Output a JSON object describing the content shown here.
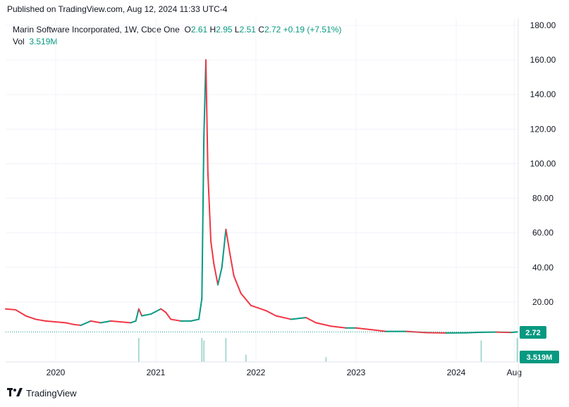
{
  "header": {
    "published": "Published on TradingView.com, Aug 12, 2024 11:33 UTC-4"
  },
  "legend": {
    "instrument": "Marin Software Incorporated, 1W, Cboe One",
    "o_label": "O",
    "o_value": "2.61",
    "h_label": "H",
    "h_value": "2.95",
    "l_label": "L",
    "l_value": "2.51",
    "c_label": "C",
    "c_value": "2.72",
    "change": "+0.19 (+7.51%)",
    "vol_label": "Vol",
    "vol_value": "3.519M"
  },
  "badges": {
    "price": "2.72",
    "volume": "3.519M"
  },
  "footer": {
    "brand": "TradingView"
  },
  "colors": {
    "up": "#089981",
    "down": "#f23645",
    "badge": "#089981",
    "grid": "#f0f3fa"
  },
  "chart_data": {
    "type": "line",
    "title": "Marin Software Incorporated, 1W, Cboe One",
    "y_ticks": [
      "180.00",
      "160.00",
      "140.00",
      "120.00",
      "100.00",
      "80.00",
      "60.00",
      "40.00",
      "20.00"
    ],
    "ylim": [
      0,
      180
    ],
    "x_ticks": [
      "2020",
      "2021",
      "2022",
      "2023",
      "2024",
      "Aug"
    ],
    "xlim": [
      2019.5,
      2024.62
    ],
    "grid": true,
    "last_price": 2.72,
    "series": [
      {
        "values": [
          [
            2019.5,
            16
          ],
          [
            2019.6,
            15.5
          ],
          [
            2019.7,
            12
          ],
          [
            2019.8,
            10
          ],
          [
            2019.9,
            9
          ],
          [
            2020.0,
            8.5
          ],
          [
            2020.1,
            8
          ],
          [
            2020.18,
            7
          ],
          [
            2020.25,
            6.5
          ],
          [
            2020.35,
            9
          ],
          [
            2020.45,
            8
          ],
          [
            2020.55,
            9
          ],
          [
            2020.65,
            8.5
          ],
          [
            2020.75,
            8
          ],
          [
            2020.8,
            9
          ],
          [
            2020.83,
            16
          ],
          [
            2020.86,
            12
          ],
          [
            2020.95,
            13
          ],
          [
            2021.05,
            16
          ],
          [
            2021.1,
            14
          ],
          [
            2021.15,
            10
          ],
          [
            2021.25,
            9
          ],
          [
            2021.35,
            9
          ],
          [
            2021.43,
            10
          ],
          [
            2021.46,
            22
          ],
          [
            2021.48,
            115
          ],
          [
            2021.5,
            160
          ],
          [
            2021.52,
            95
          ],
          [
            2021.55,
            55
          ],
          [
            2021.58,
            42
          ],
          [
            2021.62,
            30
          ],
          [
            2021.66,
            40
          ],
          [
            2021.7,
            62
          ],
          [
            2021.74,
            48
          ],
          [
            2021.78,
            35
          ],
          [
            2021.85,
            25
          ],
          [
            2021.95,
            18
          ],
          [
            2022.1,
            15
          ],
          [
            2022.2,
            12
          ],
          [
            2022.35,
            10
          ],
          [
            2022.5,
            11
          ],
          [
            2022.6,
            8
          ],
          [
            2022.75,
            6
          ],
          [
            2022.9,
            5
          ],
          [
            2023.0,
            5
          ],
          [
            2023.15,
            4
          ],
          [
            2023.3,
            3
          ],
          [
            2023.5,
            3
          ],
          [
            2023.7,
            2.3
          ],
          [
            2023.9,
            2.1
          ],
          [
            2024.1,
            2.2
          ],
          [
            2024.25,
            2.5
          ],
          [
            2024.4,
            2.6
          ],
          [
            2024.55,
            2.4
          ],
          [
            2024.61,
            2.72
          ]
        ]
      }
    ],
    "volume_spikes": [
      [
        2020.83,
        1.0
      ],
      [
        2021.46,
        1.0
      ],
      [
        2021.48,
        0.9
      ],
      [
        2021.7,
        1.0
      ],
      [
        2021.9,
        0.3
      ],
      [
        2022.7,
        0.2
      ],
      [
        2024.25,
        0.9
      ],
      [
        2024.61,
        1.0
      ]
    ]
  }
}
